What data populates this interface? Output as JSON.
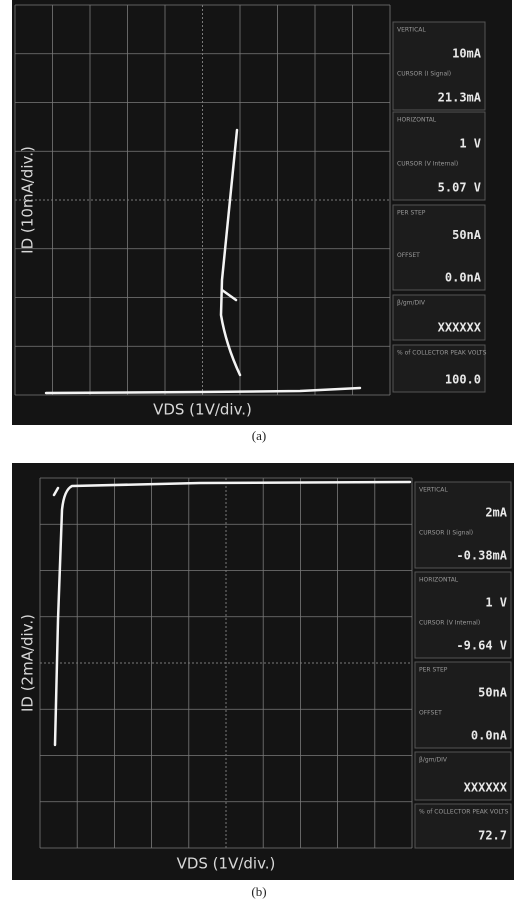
{
  "panels": [
    {
      "y_label": "ID (10mA/div.)",
      "x_label": "VDS (1V/div.)",
      "caption": "(a)",
      "readouts": [
        [
          {
            "label": "VERTICAL",
            "value": "10mA"
          },
          {
            "label": "CURSOR (I Signal)",
            "value": "21.3mA"
          }
        ],
        [
          {
            "label": "HORIZONTAL",
            "value": "1 V"
          },
          {
            "label": "CURSOR (V Internal)",
            "value": "5.07 V"
          }
        ],
        [
          {
            "label": "PER STEP",
            "value": "50nA"
          },
          {
            "label": "OFFSET",
            "value": "0.0nA"
          }
        ],
        [
          {
            "label": "β/gm/DIV",
            "value": "XXXXXX"
          }
        ],
        [
          {
            "label": "% of COLLECTOR PEAK VOLTS",
            "value": "100.0"
          }
        ]
      ]
    },
    {
      "y_label": "ID (2mA/div.)",
      "x_label": "VDS (1V/div.)",
      "caption": "(b)",
      "readouts": [
        [
          {
            "label": "VERTICAL",
            "value": "2mA"
          },
          {
            "label": "CURSOR (I Signal)",
            "value": "-0.38mA"
          }
        ],
        [
          {
            "label": "HORIZONTAL",
            "value": "1 V"
          },
          {
            "label": "CURSOR (V Internal)",
            "value": "-9.64 V"
          }
        ],
        [
          {
            "label": "PER STEP",
            "value": "50nA"
          },
          {
            "label": "OFFSET",
            "value": "0.0nA"
          }
        ],
        [
          {
            "label": "β/gm/DIV",
            "value": "XXXXXX"
          }
        ],
        [
          {
            "label": "% of COLLECTOR PEAK VOLTS",
            "value": "72.7"
          }
        ]
      ]
    }
  ]
}
